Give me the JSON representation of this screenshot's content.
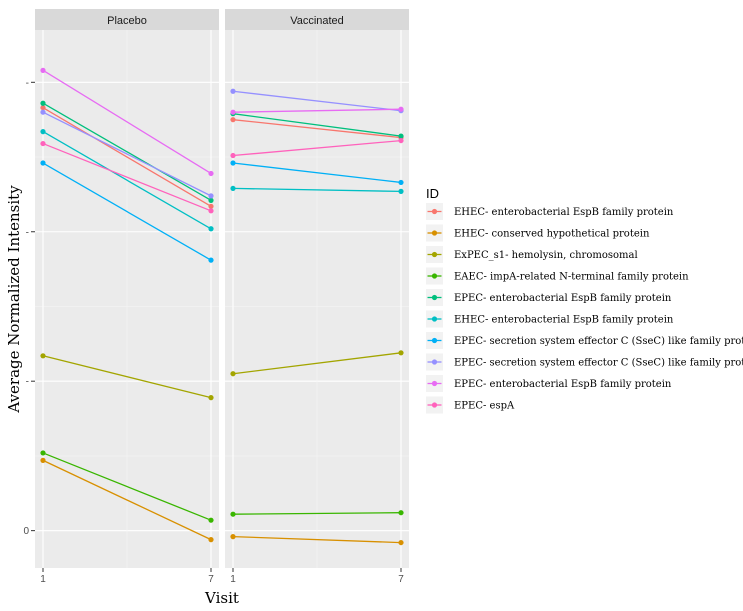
{
  "chart_data": {
    "type": "line",
    "facets": [
      "Placebo",
      "Vaccinated"
    ],
    "xlabel": "Visit",
    "ylabel": "Average Normalized Intensity",
    "x_ticks": [
      "1",
      "7"
    ],
    "y_ticks": [
      {
        "value": 0,
        "label": "0"
      },
      {
        "value": 1,
        "label": "-"
      },
      {
        "value": 2,
        "label": "-"
      },
      {
        "value": 3,
        "label": "-"
      }
    ],
    "ylim": [
      -0.25,
      3.35
    ],
    "grid": true,
    "legend_title": "ID",
    "legend_position": "right",
    "series": [
      {
        "name": "EHEC- enterobacterial EspB family protein",
        "color": "#F8766D",
        "placebo": [
          2.83,
          2.17
        ],
        "vaccinated": [
          2.75,
          2.63
        ]
      },
      {
        "name": "EHEC- conserved hypothetical protein",
        "color": "#D89000",
        "placebo": [
          0.47,
          -0.06
        ],
        "vaccinated": [
          -0.04,
          -0.08
        ]
      },
      {
        "name": "ExPEC_s1- hemolysin, chromosomal",
        "color": "#A3A500",
        "placebo": [
          1.17,
          0.89
        ],
        "vaccinated": [
          1.05,
          1.19
        ]
      },
      {
        "name": "EAEC- impA-related N-terminal family protein",
        "color": "#39B600",
        "placebo": [
          0.52,
          0.07
        ],
        "vaccinated": [
          0.11,
          0.12
        ]
      },
      {
        "name": "EPEC- enterobacterial EspB family protein",
        "color": "#00BF7D",
        "placebo": [
          2.86,
          2.21
        ],
        "vaccinated": [
          2.79,
          2.64
        ]
      },
      {
        "name": "EHEC- enterobacterial EspB family protein",
        "color": "#00BFC4",
        "placebo": [
          2.67,
          2.02
        ],
        "vaccinated": [
          2.29,
          2.27
        ]
      },
      {
        "name": "EPEC- secretion system effector C (SseC) like family protein",
        "color": "#00B0F6",
        "placebo": [
          2.46,
          1.81
        ],
        "vaccinated": [
          2.46,
          2.33
        ]
      },
      {
        "name": "EPEC- secretion system effector C (SseC) like family protein",
        "color": "#9590FF",
        "placebo": [
          2.8,
          2.24
        ],
        "vaccinated": [
          2.94,
          2.81
        ]
      },
      {
        "name": "EPEC- enterobacterial EspB family protein",
        "color": "#E76BF3",
        "placebo": [
          3.08,
          2.39
        ],
        "vaccinated": [
          2.8,
          2.82
        ]
      },
      {
        "name": "EPEC- espA",
        "color": "#FF62BC",
        "placebo": [
          2.59,
          2.14
        ],
        "vaccinated": [
          2.51,
          2.61
        ]
      }
    ]
  }
}
